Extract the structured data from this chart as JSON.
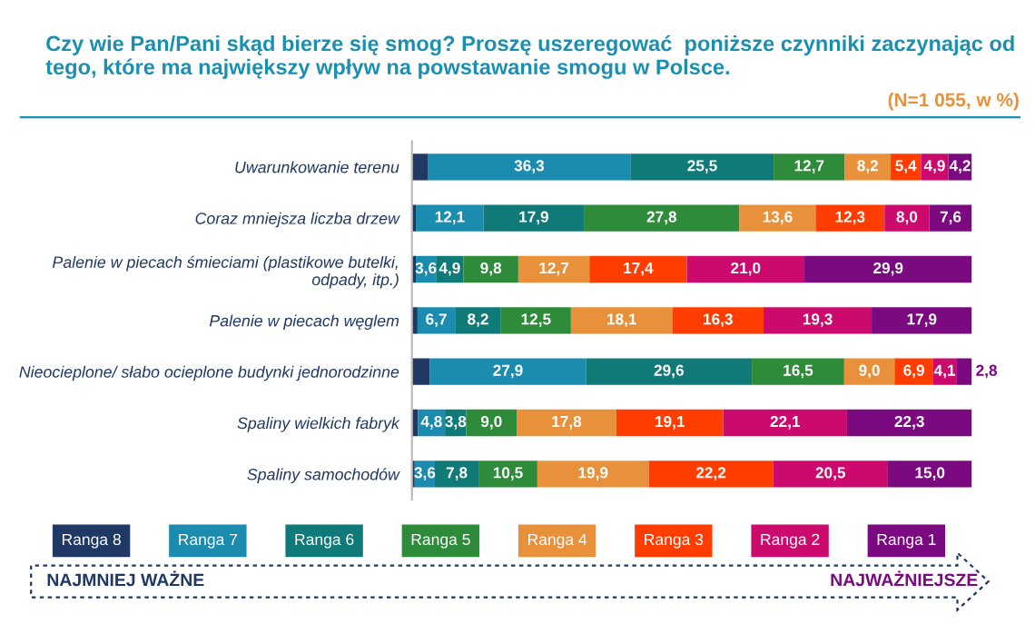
{
  "chart_data": {
    "type": "bar",
    "orientation": "horizontal",
    "stacked": true,
    "title": "Czy wie Pan/Pani skąd bierze się smog? Proszę uszeregować  poniższe czynniki zaczynając od tego, które ma największy wpływ na powstawanie smogu w Polsce.",
    "subtitle": "(N=1 055, w %)",
    "categories": [
      "Uwarunkowanie terenu",
      "Coraz mniejsza liczba drzew",
      "Palenie w piecach śmieciami (plastikowe butelki,\nodpady, itp.)",
      "Palenie w piecach węglem",
      "Nieocieplone/ słabo ocieplone budynki jednorodzinne",
      "Spaliny wielkich fabryk",
      "Spaliny samochodów"
    ],
    "xlim": [
      0,
      100
    ],
    "tick_labels": "y",
    "grid": false,
    "legend": "bottom",
    "series": [
      {
        "name": "Ranga 8",
        "color": "#1f3864",
        "values": [
          2.8,
          0.7,
          0.7,
          1.0,
          3.2,
          1.1,
          0.5
        ],
        "value_labels": [
          null,
          null,
          null,
          null,
          null,
          null,
          null
        ]
      },
      {
        "name": "Ranga 7",
        "color": "#1b8bb0",
        "values": [
          36.3,
          12.1,
          3.6,
          6.7,
          27.9,
          4.8,
          3.6
        ],
        "value_labels": [
          "36,3",
          "12,1",
          "3,6",
          "6,7",
          "27,9",
          "4,8",
          "3,6"
        ]
      },
      {
        "name": "Ranga 6",
        "color": "#107a78",
        "values": [
          25.5,
          17.9,
          4.9,
          8.2,
          29.6,
          3.8,
          7.8
        ],
        "value_labels": [
          "25,5",
          "17,9",
          "4,9",
          "8,2",
          "29,6",
          "3,8",
          "7,8"
        ]
      },
      {
        "name": "Ranga 5",
        "color": "#2e8b3a",
        "values": [
          12.7,
          27.8,
          9.8,
          12.5,
          16.5,
          9.0,
          10.5
        ],
        "value_labels": [
          "12,7",
          "27,8",
          "9,8",
          "12,5",
          "16,5",
          "9,0",
          "10,5"
        ]
      },
      {
        "name": "Ranga 4",
        "color": "#e8913a",
        "values": [
          8.2,
          13.6,
          12.7,
          18.1,
          9.0,
          17.8,
          19.9
        ],
        "value_labels": [
          "8,2",
          "13,6",
          "12,7",
          "18,1",
          "9,0",
          "17,8",
          "19,9"
        ]
      },
      {
        "name": "Ranga 3",
        "color": "#ff3d00",
        "values": [
          5.4,
          12.3,
          17.4,
          16.3,
          6.9,
          19.1,
          22.2
        ],
        "value_labels": [
          "5,4",
          "12,3",
          "17,4",
          "16,3",
          "6,9",
          "19,1",
          "22,2"
        ]
      },
      {
        "name": "Ranga 2",
        "color": "#cc0a6e",
        "values": [
          4.9,
          8.0,
          21.0,
          19.3,
          4.1,
          22.1,
          20.5
        ],
        "value_labels": [
          "4,9",
          "8,0",
          "21,0",
          "19,3",
          "4,1",
          "22,1",
          "20,5"
        ]
      },
      {
        "name": "Ranga 1",
        "color": "#7b0a80",
        "values": [
          4.2,
          7.6,
          29.9,
          17.9,
          2.8,
          22.3,
          15.0
        ],
        "value_labels": [
          "4,2",
          "7,6",
          "29,9",
          "17,9",
          "2,8",
          "22,3",
          "15,0"
        ]
      }
    ],
    "annotations": [
      "NAJMNIEJ WAŻNE",
      "NAJWAŻNIEJSZE"
    ]
  }
}
